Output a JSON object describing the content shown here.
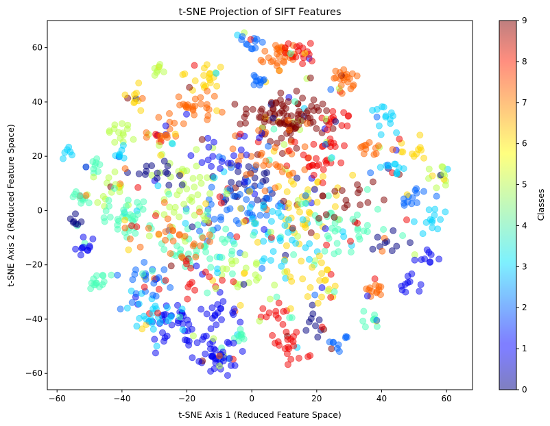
{
  "chart_data": {
    "type": "scatter",
    "title": "t-SNE Projection of SIFT Features",
    "xlabel": "t-SNE Axis 1 (Reduced Feature Space)",
    "ylabel": "t-SNE Axis 2 (Reduced Feature Space)",
    "xlim": [
      -63,
      68
    ],
    "ylim": [
      -66,
      70
    ],
    "xticks": [
      -60,
      -40,
      -20,
      0,
      20,
      40,
      60
    ],
    "yticks": [
      -60,
      -40,
      -20,
      0,
      20,
      40,
      60
    ],
    "grid": false,
    "point_alpha": 0.5,
    "colorbar": {
      "label": "Classes",
      "colormap": "jet",
      "min": 0,
      "max": 9,
      "ticks": [
        0,
        1,
        2,
        3,
        4,
        5,
        6,
        7,
        8,
        9
      ]
    },
    "clusters": [
      {
        "x": 9,
        "y": 57,
        "class": 7,
        "n": 30,
        "spread": 3
      },
      {
        "x": 14,
        "y": 58,
        "class": 8,
        "n": 20,
        "spread": 2.5
      },
      {
        "x": 29,
        "y": 46,
        "class": 7,
        "n": 24,
        "spread": 2.5
      },
      {
        "x": -14,
        "y": 50,
        "class": 6,
        "n": 22,
        "spread": 3
      },
      {
        "x": -1,
        "y": 62,
        "class": 2,
        "n": 14,
        "spread": 2
      },
      {
        "x": 2,
        "y": 48,
        "class": 2,
        "n": 10,
        "spread": 1.5
      },
      {
        "x": -29,
        "y": 52,
        "class": 5,
        "n": 8,
        "spread": 1
      },
      {
        "x": -36,
        "y": 41,
        "class": 6,
        "n": 12,
        "spread": 2
      },
      {
        "x": 13,
        "y": 35,
        "class": 9,
        "n": 70,
        "spread": 5
      },
      {
        "x": 5,
        "y": 32,
        "class": 9,
        "n": 40,
        "spread": 4
      },
      {
        "x": -18,
        "y": 37,
        "class": 7,
        "n": 30,
        "spread": 4
      },
      {
        "x": -40,
        "y": 29,
        "class": 5,
        "n": 15,
        "spread": 2.5
      },
      {
        "x": -28,
        "y": 28,
        "class": 7,
        "n": 20,
        "spread": 3
      },
      {
        "x": 41,
        "y": 34,
        "class": 3,
        "n": 14,
        "spread": 2
      },
      {
        "x": 26,
        "y": 32,
        "class": 8,
        "n": 20,
        "spread": 3
      },
      {
        "x": 37,
        "y": 23,
        "class": 7,
        "n": 12,
        "spread": 2
      },
      {
        "x": 49,
        "y": 23,
        "class": 6,
        "n": 14,
        "spread": 2.5
      },
      {
        "x": -57,
        "y": 21,
        "class": 3,
        "n": 6,
        "spread": 1
      },
      {
        "x": -48,
        "y": 17,
        "class": 4,
        "n": 10,
        "spread": 1.5
      },
      {
        "x": -40,
        "y": 20,
        "class": 3,
        "n": 8,
        "spread": 1.5
      },
      {
        "x": 58,
        "y": 13,
        "class": 5,
        "n": 14,
        "spread": 2
      },
      {
        "x": 43,
        "y": 15,
        "class": 3,
        "n": 14,
        "spread": 2
      },
      {
        "x": -44,
        "y": 8,
        "class": 5,
        "n": 18,
        "spread": 3
      },
      {
        "x": -54,
        "y": 5,
        "class": 4,
        "n": 12,
        "spread": 2
      },
      {
        "x": -40,
        "y": -3,
        "class": 4,
        "n": 40,
        "spread": 4
      },
      {
        "x": -54,
        "y": -3,
        "class": 0,
        "n": 8,
        "spread": 1.5
      },
      {
        "x": 50,
        "y": 6,
        "class": 2,
        "n": 14,
        "spread": 2.5
      },
      {
        "x": 55,
        "y": -4,
        "class": 3,
        "n": 14,
        "spread": 2.5
      },
      {
        "x": -50,
        "y": -13,
        "class": 1,
        "n": 12,
        "spread": 2
      },
      {
        "x": 44,
        "y": -12,
        "class": 0,
        "n": 12,
        "spread": 2
      },
      {
        "x": 54,
        "y": -17,
        "class": 1,
        "n": 10,
        "spread": 2
      },
      {
        "x": -48,
        "y": -26,
        "class": 4,
        "n": 14,
        "spread": 2
      },
      {
        "x": 48,
        "y": -28,
        "class": 1,
        "n": 10,
        "spread": 2
      },
      {
        "x": 37,
        "y": -29,
        "class": 7,
        "n": 14,
        "spread": 2
      },
      {
        "x": 37,
        "y": -40,
        "class": 4,
        "n": 10,
        "spread": 1.5
      },
      {
        "x": 27,
        "y": -48,
        "class": 2,
        "n": 10,
        "spread": 2
      },
      {
        "x": 13,
        "y": -50,
        "class": 8,
        "n": 22,
        "spread": 3
      },
      {
        "x": -4,
        "y": -47,
        "class": 4,
        "n": 10,
        "spread": 1.5
      },
      {
        "x": -10,
        "y": -54,
        "class": 1,
        "n": 40,
        "spread": 3
      },
      {
        "x": -22,
        "y": -43,
        "class": 1,
        "n": 50,
        "spread": 5
      },
      {
        "x": -10,
        "y": -38,
        "class": 1,
        "n": 18,
        "spread": 3
      },
      {
        "x": -30,
        "y": -38,
        "class": 3,
        "n": 30,
        "spread": 5
      },
      {
        "x": -35,
        "y": -25,
        "class": 2,
        "n": 24,
        "spread": 4
      },
      {
        "x": 19,
        "y": -41,
        "class": 0,
        "n": 10,
        "spread": 2
      },
      {
        "x": 7,
        "y": -37,
        "class": 8,
        "n": 14,
        "spread": 3
      },
      {
        "x": 0,
        "y": 10,
        "class": 0,
        "n": 30,
        "spread": 4
      },
      {
        "x": -5,
        "y": 0,
        "class": 2,
        "n": 50,
        "spread": 7
      },
      {
        "x": -20,
        "y": 5,
        "class": 5,
        "n": 50,
        "spread": 7
      },
      {
        "x": 15,
        "y": 5,
        "class": 6,
        "n": 50,
        "spread": 7
      },
      {
        "x": 10,
        "y": -10,
        "class": 3,
        "n": 50,
        "spread": 7
      },
      {
        "x": -15,
        "y": -15,
        "class": 4,
        "n": 50,
        "spread": 7
      },
      {
        "x": 25,
        "y": -8,
        "class": 4,
        "n": 40,
        "spread": 7
      },
      {
        "x": -25,
        "y": -10,
        "class": 7,
        "n": 30,
        "spread": 7
      },
      {
        "x": 5,
        "y": 20,
        "class": 7,
        "n": 40,
        "spread": 6
      },
      {
        "x": 20,
        "y": 20,
        "class": 8,
        "n": 30,
        "spread": 5
      },
      {
        "x": -10,
        "y": 20,
        "class": 1,
        "n": 30,
        "spread": 6
      },
      {
        "x": 0,
        "y": -25,
        "class": 5,
        "n": 30,
        "spread": 6
      },
      {
        "x": 20,
        "y": -25,
        "class": 6,
        "n": 30,
        "spread": 6
      },
      {
        "x": -20,
        "y": -25,
        "class": 8,
        "n": 20,
        "spread": 6
      },
      {
        "x": 30,
        "y": 5,
        "class": 9,
        "n": 20,
        "spread": 5
      },
      {
        "x": -30,
        "y": 15,
        "class": 0,
        "n": 20,
        "spread": 5
      }
    ]
  }
}
